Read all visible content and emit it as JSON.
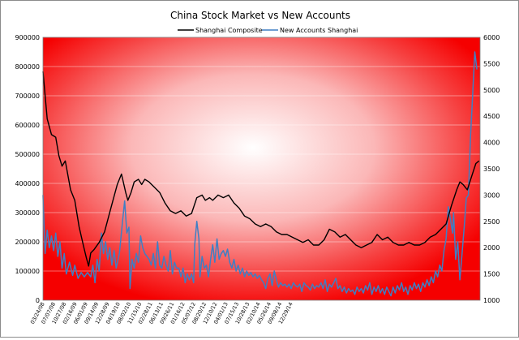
{
  "chart_data": {
    "type": "line",
    "title": "China Stock Market vs New Accounts",
    "legend": "top-center",
    "grid": true,
    "y_left": {
      "min": 0,
      "max": 900000,
      "ticks": [
        0,
        100000,
        200000,
        300000,
        400000,
        500000,
        600000,
        700000,
        800000,
        900000
      ],
      "tick_labels": [
        "0",
        "100000",
        "200000",
        "300000",
        "400000",
        "500000",
        "600000",
        "700000",
        "800000",
        "900000"
      ]
    },
    "y_right": {
      "min": 1000,
      "max": 6000,
      "ticks": [
        1000,
        1500,
        2000,
        2500,
        3000,
        3500,
        4000,
        4500,
        5000,
        5500,
        6000
      ],
      "tick_labels": [
        "1000",
        "1500",
        "2000",
        "2500",
        "3000",
        "3500",
        "4000",
        "4500",
        "5000",
        "5500",
        "6000"
      ]
    },
    "x_ticks": [
      "03/24/08",
      "07/07/08",
      "10/27/08",
      "02/16/09",
      "06/01/09",
      "09/14/09",
      "12/28/09",
      "04/19/10",
      "08/02/10",
      "11/15/10",
      "02/28/11",
      "06/13/11",
      "09/26/11",
      "01/16/12",
      "05/07/12",
      "08/20/12",
      "12/10/12",
      "04/01/13",
      "07/15/13",
      "10/28/13",
      "02/10/14",
      "05/26/14",
      "09/08/14",
      "12/29/14"
    ],
    "series": [
      {
        "name": "Shanghai Composite",
        "axis": "right",
        "color": "#000000",
        "points": [
          [
            0,
            5350
          ],
          [
            0.4,
            4450
          ],
          [
            0.8,
            4150
          ],
          [
            1.2,
            4100
          ],
          [
            1.5,
            3750
          ],
          [
            1.8,
            3550
          ],
          [
            2.1,
            3650
          ],
          [
            2.6,
            3100
          ],
          [
            3.0,
            2900
          ],
          [
            3.4,
            2400
          ],
          [
            3.8,
            2050
          ],
          [
            4.1,
            1800
          ],
          [
            4.3,
            1650
          ],
          [
            4.5,
            1900
          ],
          [
            4.8,
            1960
          ],
          [
            5.3,
            2100
          ],
          [
            5.8,
            2300
          ],
          [
            6.2,
            2600
          ],
          [
            6.6,
            2900
          ],
          [
            7.0,
            3200
          ],
          [
            7.4,
            3400
          ],
          [
            7.8,
            3050
          ],
          [
            8.0,
            2900
          ],
          [
            8.3,
            3050
          ],
          [
            8.6,
            3250
          ],
          [
            9.0,
            3300
          ],
          [
            9.3,
            3200
          ],
          [
            9.6,
            3300
          ],
          [
            10.0,
            3250
          ],
          [
            10.5,
            3150
          ],
          [
            11.0,
            3050
          ],
          [
            11.5,
            2850
          ],
          [
            12.0,
            2700
          ],
          [
            12.5,
            2650
          ],
          [
            13.0,
            2700
          ],
          [
            13.5,
            2600
          ],
          [
            14.0,
            2650
          ],
          [
            14.5,
            2950
          ],
          [
            15.0,
            3000
          ],
          [
            15.3,
            2900
          ],
          [
            15.7,
            2950
          ],
          [
            16.0,
            2900
          ],
          [
            16.5,
            3000
          ],
          [
            17.0,
            2950
          ],
          [
            17.5,
            3000
          ],
          [
            18.0,
            2850
          ],
          [
            18.5,
            2750
          ],
          [
            19.0,
            2600
          ],
          [
            19.5,
            2550
          ],
          [
            20.0,
            2450
          ],
          [
            20.5,
            2400
          ],
          [
            21.0,
            2450
          ],
          [
            21.5,
            2400
          ],
          [
            22.0,
            2300
          ],
          [
            22.5,
            2250
          ],
          [
            23.0,
            2250
          ],
          [
            23.5,
            2200
          ],
          [
            24.0,
            2150
          ],
          [
            24.5,
            2100
          ],
          [
            25.0,
            2150
          ],
          [
            25.5,
            2050
          ],
          [
            26.0,
            2050
          ],
          [
            26.5,
            2150
          ],
          [
            27.0,
            2350
          ],
          [
            27.5,
            2300
          ],
          [
            28.0,
            2200
          ],
          [
            28.5,
            2250
          ],
          [
            29.0,
            2150
          ],
          [
            29.5,
            2050
          ],
          [
            30.0,
            2000
          ],
          [
            30.5,
            2050
          ],
          [
            31.0,
            2100
          ],
          [
            31.5,
            2250
          ],
          [
            32.0,
            2150
          ],
          [
            32.5,
            2200
          ],
          [
            33.0,
            2100
          ],
          [
            33.5,
            2050
          ],
          [
            34.0,
            2050
          ],
          [
            34.5,
            2100
          ],
          [
            35.0,
            2050
          ],
          [
            35.5,
            2050
          ],
          [
            36.0,
            2100
          ],
          [
            36.5,
            2200
          ],
          [
            37.0,
            2250
          ],
          [
            37.5,
            2350
          ],
          [
            38.0,
            2450
          ],
          [
            38.5,
            2800
          ],
          [
            39.0,
            3100
          ],
          [
            39.3,
            3250
          ],
          [
            39.6,
            3200
          ],
          [
            40.0,
            3100
          ],
          [
            40.4,
            3350
          ],
          [
            40.8,
            3600
          ],
          [
            41.1,
            3650
          ]
        ]
      },
      {
        "name": "New Accounts Shanghai",
        "axis": "left",
        "color": "#3f7fc4",
        "points": [
          [
            0,
            360000
          ],
          [
            0.2,
            160000
          ],
          [
            0.4,
            240000
          ],
          [
            0.6,
            180000
          ],
          [
            0.8,
            220000
          ],
          [
            1.0,
            170000
          ],
          [
            1.2,
            230000
          ],
          [
            1.4,
            150000
          ],
          [
            1.6,
            200000
          ],
          [
            1.8,
            110000
          ],
          [
            2.0,
            160000
          ],
          [
            2.2,
            90000
          ],
          [
            2.5,
            130000
          ],
          [
            2.8,
            85000
          ],
          [
            3.0,
            120000
          ],
          [
            3.3,
            75000
          ],
          [
            3.6,
            95000
          ],
          [
            3.9,
            80000
          ],
          [
            4.2,
            95000
          ],
          [
            4.5,
            80000
          ],
          [
            4.7,
            120000
          ],
          [
            4.9,
            60000
          ],
          [
            5.1,
            140000
          ],
          [
            5.3,
            100000
          ],
          [
            5.5,
            230000
          ],
          [
            5.7,
            160000
          ],
          [
            5.9,
            200000
          ],
          [
            6.1,
            140000
          ],
          [
            6.3,
            180000
          ],
          [
            6.5,
            120000
          ],
          [
            6.7,
            170000
          ],
          [
            6.9,
            110000
          ],
          [
            7.2,
            160000
          ],
          [
            7.5,
            270000
          ],
          [
            7.7,
            340000
          ],
          [
            7.9,
            230000
          ],
          [
            8.1,
            250000
          ],
          [
            8.2,
            40000
          ],
          [
            8.4,
            140000
          ],
          [
            8.6,
            110000
          ],
          [
            8.8,
            160000
          ],
          [
            9.0,
            130000
          ],
          [
            9.2,
            220000
          ],
          [
            9.4,
            180000
          ],
          [
            9.6,
            160000
          ],
          [
            9.8,
            150000
          ],
          [
            10.0,
            140000
          ],
          [
            10.2,
            120000
          ],
          [
            10.4,
            160000
          ],
          [
            10.6,
            110000
          ],
          [
            10.8,
            200000
          ],
          [
            11.0,
            120000
          ],
          [
            11.2,
            110000
          ],
          [
            11.4,
            150000
          ],
          [
            11.6,
            120000
          ],
          [
            11.8,
            100000
          ],
          [
            12.0,
            170000
          ],
          [
            12.2,
            90000
          ],
          [
            12.4,
            130000
          ],
          [
            12.6,
            110000
          ],
          [
            12.8,
            110000
          ],
          [
            13.0,
            80000
          ],
          [
            13.2,
            110000
          ],
          [
            13.4,
            60000
          ],
          [
            13.6,
            90000
          ],
          [
            13.8,
            70000
          ],
          [
            14.0,
            90000
          ],
          [
            14.2,
            60000
          ],
          [
            14.3,
            190000
          ],
          [
            14.5,
            270000
          ],
          [
            14.7,
            210000
          ],
          [
            14.8,
            80000
          ],
          [
            15.0,
            150000
          ],
          [
            15.2,
            110000
          ],
          [
            15.4,
            120000
          ],
          [
            15.6,
            80000
          ],
          [
            15.8,
            140000
          ],
          [
            16.0,
            190000
          ],
          [
            16.2,
            130000
          ],
          [
            16.4,
            210000
          ],
          [
            16.6,
            140000
          ],
          [
            16.8,
            160000
          ],
          [
            17.0,
            170000
          ],
          [
            17.2,
            150000
          ],
          [
            17.4,
            175000
          ],
          [
            17.6,
            130000
          ],
          [
            17.8,
            110000
          ],
          [
            18.0,
            140000
          ],
          [
            18.2,
            100000
          ],
          [
            18.4,
            120000
          ],
          [
            18.6,
            90000
          ],
          [
            18.8,
            110000
          ],
          [
            19.0,
            80000
          ],
          [
            19.2,
            100000
          ],
          [
            19.4,
            85000
          ],
          [
            19.6,
            95000
          ],
          [
            19.8,
            80000
          ],
          [
            20.0,
            90000
          ],
          [
            20.2,
            75000
          ],
          [
            20.4,
            85000
          ],
          [
            20.6,
            70000
          ],
          [
            20.8,
            60000
          ],
          [
            21.0,
            40000
          ],
          [
            21.2,
            75000
          ],
          [
            21.4,
            90000
          ],
          [
            21.6,
            50000
          ],
          [
            21.8,
            100000
          ],
          [
            22.0,
            70000
          ],
          [
            22.2,
            45000
          ],
          [
            22.4,
            60000
          ],
          [
            22.6,
            50000
          ],
          [
            22.8,
            55000
          ],
          [
            23.0,
            45000
          ],
          [
            23.2,
            55000
          ],
          [
            23.4,
            40000
          ],
          [
            23.6,
            60000
          ],
          [
            23.8,
            50000
          ],
          [
            24.0,
            45000
          ],
          [
            24.2,
            55000
          ],
          [
            24.4,
            30000
          ],
          [
            24.6,
            60000
          ],
          [
            24.8,
            50000
          ],
          [
            25.0,
            45000
          ],
          [
            25.2,
            35000
          ],
          [
            25.4,
            55000
          ],
          [
            25.6,
            40000
          ],
          [
            25.8,
            50000
          ],
          [
            26.0,
            45000
          ],
          [
            26.2,
            60000
          ],
          [
            26.4,
            40000
          ],
          [
            26.6,
            70000
          ],
          [
            26.8,
            30000
          ],
          [
            27.0,
            55000
          ],
          [
            27.2,
            45000
          ],
          [
            27.4,
            60000
          ],
          [
            27.6,
            75000
          ],
          [
            27.8,
            40000
          ],
          [
            28.0,
            50000
          ],
          [
            28.2,
            30000
          ],
          [
            28.4,
            45000
          ],
          [
            28.6,
            25000
          ],
          [
            28.8,
            40000
          ],
          [
            29.0,
            30000
          ],
          [
            29.2,
            35000
          ],
          [
            29.4,
            20000
          ],
          [
            29.6,
            45000
          ],
          [
            29.8,
            30000
          ],
          [
            30.0,
            40000
          ],
          [
            30.2,
            25000
          ],
          [
            30.4,
            50000
          ],
          [
            30.6,
            35000
          ],
          [
            30.8,
            60000
          ],
          [
            31.0,
            20000
          ],
          [
            31.2,
            45000
          ],
          [
            31.4,
            30000
          ],
          [
            31.6,
            50000
          ],
          [
            31.8,
            25000
          ],
          [
            32.0,
            40000
          ],
          [
            32.2,
            20000
          ],
          [
            32.4,
            45000
          ],
          [
            32.6,
            30000
          ],
          [
            32.8,
            15000
          ],
          [
            33.0,
            45000
          ],
          [
            33.2,
            25000
          ],
          [
            33.4,
            50000
          ],
          [
            33.6,
            35000
          ],
          [
            33.8,
            60000
          ],
          [
            34.0,
            30000
          ],
          [
            34.2,
            45000
          ],
          [
            34.4,
            20000
          ],
          [
            34.6,
            50000
          ],
          [
            34.8,
            35000
          ],
          [
            35.0,
            60000
          ],
          [
            35.2,
            40000
          ],
          [
            35.4,
            55000
          ],
          [
            35.6,
            30000
          ],
          [
            35.8,
            60000
          ],
          [
            36.0,
            45000
          ],
          [
            36.2,
            70000
          ],
          [
            36.4,
            50000
          ],
          [
            36.6,
            80000
          ],
          [
            36.8,
            60000
          ],
          [
            37.0,
            100000
          ],
          [
            37.2,
            80000
          ],
          [
            37.4,
            120000
          ],
          [
            37.6,
            100000
          ],
          [
            37.8,
            170000
          ],
          [
            38.0,
            210000
          ],
          [
            38.2,
            320000
          ],
          [
            38.4,
            280000
          ],
          [
            38.6,
            230000
          ],
          [
            38.7,
            300000
          ],
          [
            38.9,
            140000
          ],
          [
            39.1,
            200000
          ],
          [
            39.3,
            70000
          ],
          [
            39.5,
            160000
          ],
          [
            39.7,
            250000
          ],
          [
            39.9,
            350000
          ],
          [
            40.1,
            360000
          ],
          [
            40.3,
            560000
          ],
          [
            40.5,
            700000
          ],
          [
            40.7,
            850000
          ],
          [
            40.9,
            790000
          ]
        ]
      }
    ]
  }
}
